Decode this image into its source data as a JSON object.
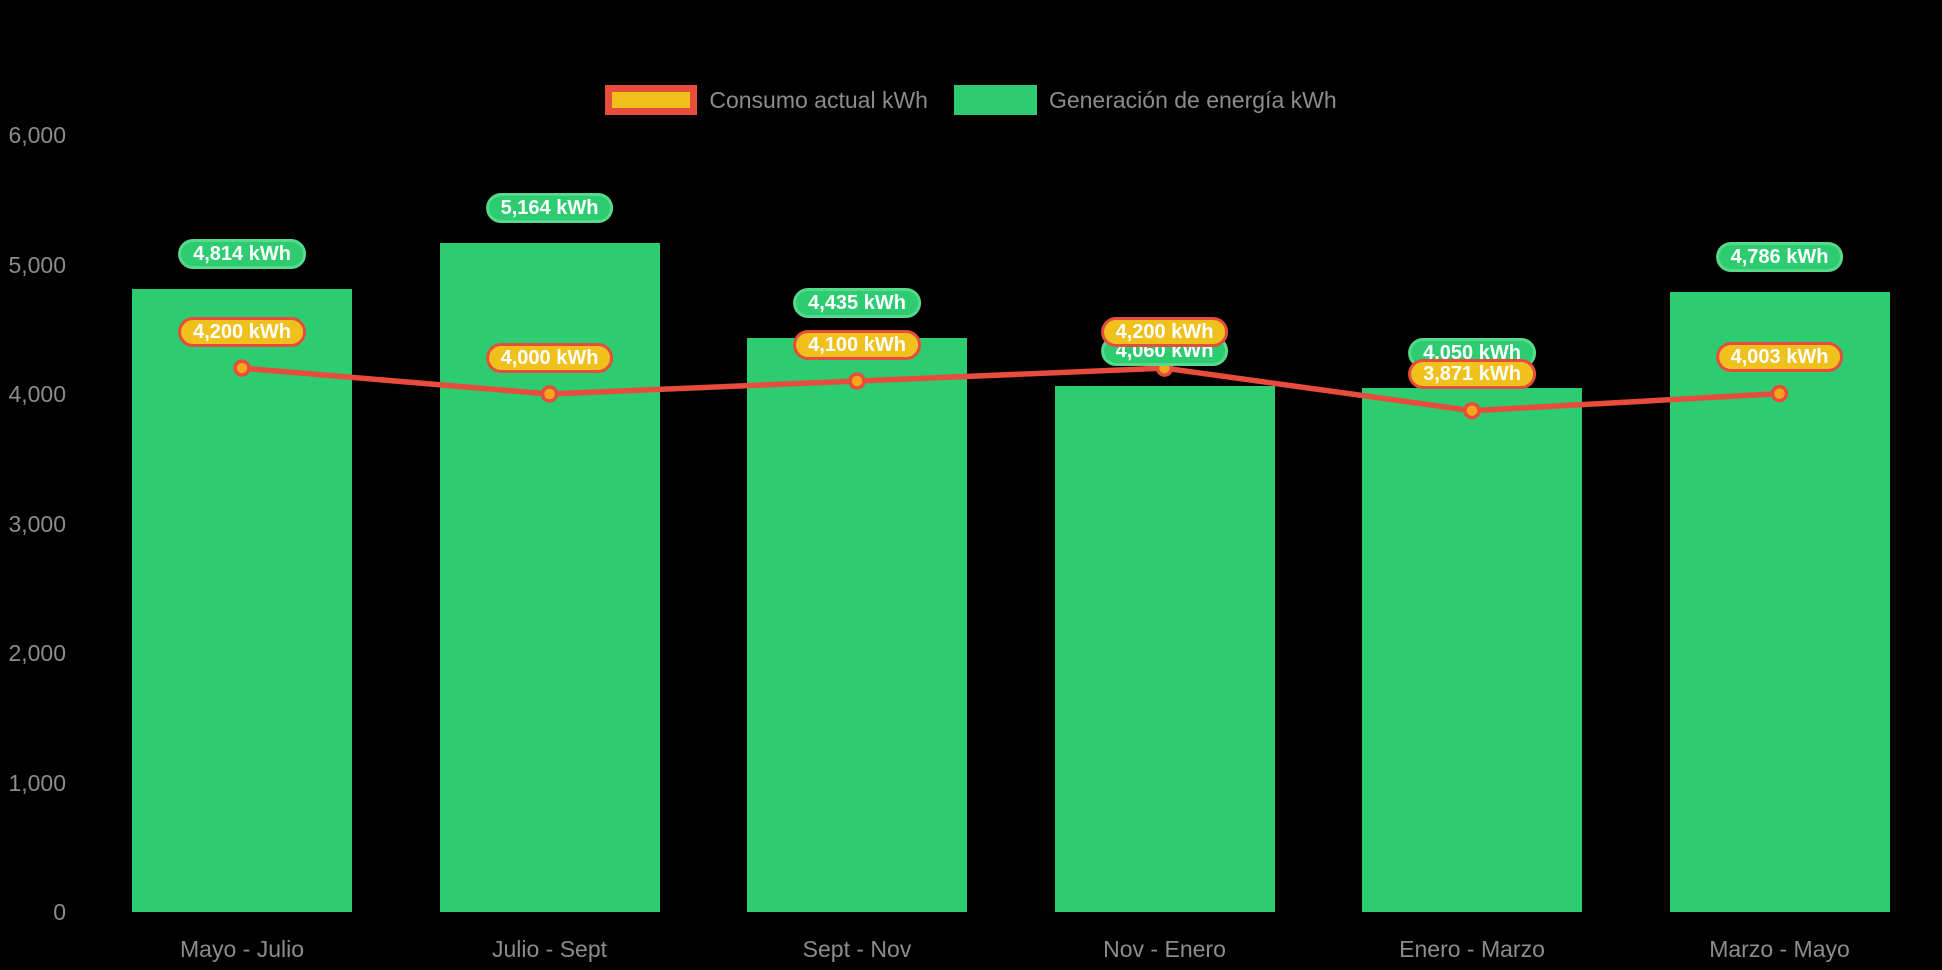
{
  "chart_data": {
    "type": "combo-bar-line",
    "title": "",
    "categories": [
      "Mayo - Julio",
      "Julio - Sept",
      "Sept - Nov",
      "Nov - Enero",
      "Enero - Marzo",
      "Marzo - Mayo"
    ],
    "series": [
      {
        "name": "Consumo actual kWh",
        "type": "line",
        "values": [
          4200,
          4000,
          4100,
          4200,
          3871,
          4003
        ],
        "value_labels": [
          "4,200 kWh",
          "4,000 kWh",
          "4,100 kWh",
          "4,200 kWh",
          "3,871 kWh",
          "4,003 kWh"
        ],
        "color": "#e74c3c",
        "marker_fill": "#f2a71b",
        "label_bg": "#f0c11d",
        "label_border": "#e74c3c"
      },
      {
        "name": "Generación de energía kWh",
        "type": "bar",
        "values": [
          4814,
          5164,
          4435,
          4060,
          4050,
          4786
        ],
        "value_labels": [
          "4,814 kWh",
          "5,164 kWh",
          "4,435 kWh",
          "4,060 kWh",
          "4,050 kWh",
          "4,786 kWh"
        ],
        "color": "#2ecc71",
        "label_bg": "#2ecc71",
        "label_border": "#56d98a"
      }
    ],
    "y_axis": {
      "tick_labels": [
        "0",
        "1,000",
        "2,000",
        "3,000",
        "4,000",
        "5,000",
        "6,000"
      ],
      "tick_values": [
        0,
        1000,
        2000,
        3000,
        4000,
        5000,
        6000
      ],
      "range": [
        0,
        6000
      ]
    },
    "grid": false,
    "legend_position": "top-center",
    "background": "#000000",
    "axis_text_color": "#8c8c8c",
    "badge_text_color": "#ffffff"
  }
}
